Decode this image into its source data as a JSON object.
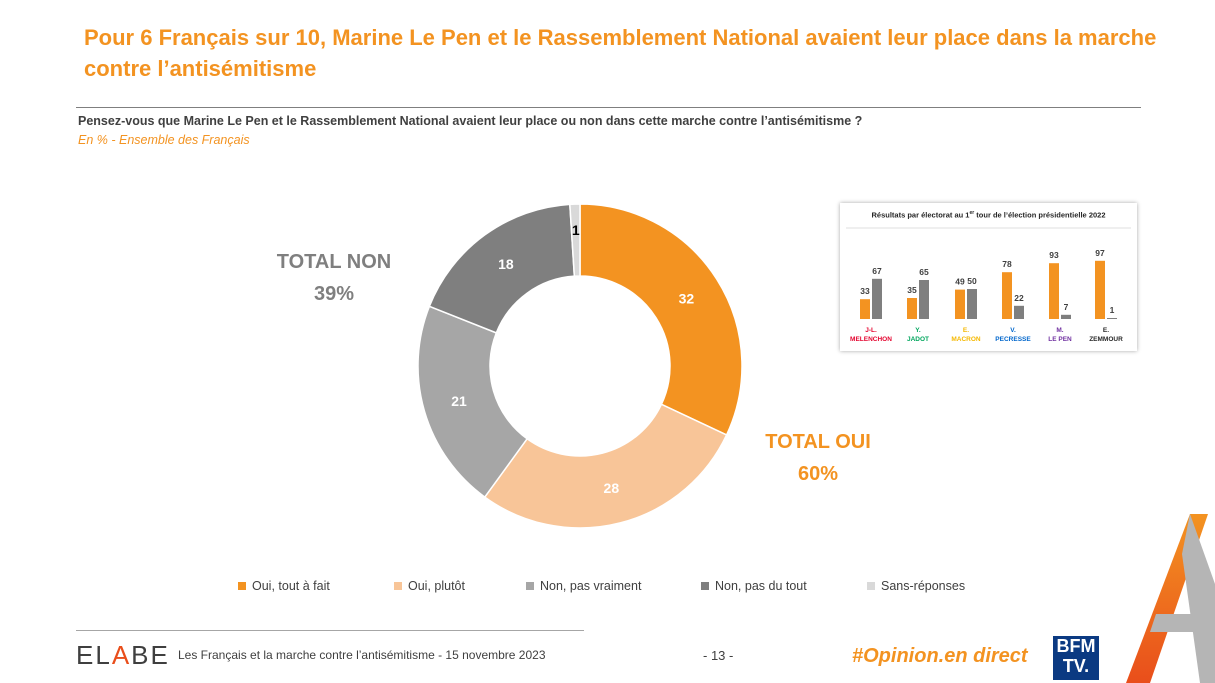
{
  "title": "Pour 6 Français sur 10, Marine Le Pen et le Rassemblement National avaient leur place dans la marche contre l’antisémitisme",
  "question": "Pensez-vous que Marine Le Pen et le Rassemblement National avaient leur place ou non dans cette marche contre l’antisémitisme ?",
  "subtitle": "En % - Ensemble des Français",
  "total_non": {
    "label": "TOTAL NON",
    "value": "39%"
  },
  "total_oui": {
    "label": "TOTAL OUI",
    "value": "60%"
  },
  "colors": {
    "oui_tout_a_fait": "#F39321",
    "oui_plutot": "#F8C598",
    "non_pas_vraiment": "#A6A6A6",
    "non_pas_du_tout": "#7F7F7F",
    "sans_reponse": "#D9D9D9"
  },
  "chart_data": [
    {
      "type": "pie",
      "variant": "donut",
      "title": "Pensez-vous que Marine Le Pen et le Rassemblement National avaient leur place ou non dans cette marche contre l’antisémitisme ?",
      "categories": [
        "Oui, tout à fait",
        "Oui, plutôt",
        "Non, pas vraiment",
        "Non, pas du tout",
        "Sans-réponses"
      ],
      "values": [
        32,
        28,
        21,
        18,
        1
      ],
      "value_labels": [
        "32",
        "28",
        "21",
        "18",
        "1"
      ],
      "legend_position": "bottom"
    },
    {
      "type": "bar",
      "title": "Résultats par électorat au 1er tour de l’élection présidentielle 2022",
      "categories": [
        "J-L. MELENCHON",
        "Y. JADOT",
        "E. MACRON",
        "V. PECRESSE",
        "M. LE PEN",
        "E. ZEMMOUR"
      ],
      "category_lines": [
        [
          "J-L.",
          "MELENCHON"
        ],
        [
          "Y.",
          "JADOT"
        ],
        [
          "E.",
          "MACRON"
        ],
        [
          "V.",
          "PECRESSE"
        ],
        [
          "M.",
          "LE PEN"
        ],
        [
          "E.",
          "ZEMMOUR"
        ]
      ],
      "category_colors": [
        "#E4032E",
        "#00A65D",
        "#F5B800",
        "#0066CC",
        "#7030A0",
        "#262626"
      ],
      "series": [
        {
          "name": "TOTAL OUI",
          "values": [
            33,
            35,
            49,
            78,
            93,
            97
          ],
          "labels": [
            "33",
            "35",
            "49",
            "78",
            "93",
            "97"
          ]
        },
        {
          "name": "TOTAL NON",
          "values": [
            67,
            65,
            50,
            22,
            7,
            1
          ],
          "labels": [
            "67",
            "65",
            "50",
            "22",
            "7",
            "1"
          ]
        }
      ],
      "ylim": [
        0,
        100
      ]
    }
  ],
  "inset_title": {
    "before": "Résultats par électorat au 1",
    "sup": "er",
    "after": " tour de l’élection présidentielle 2022"
  },
  "footer": {
    "brand_e": "EL",
    "brand_a": "A",
    "brand_rest": "BE",
    "text": "Les Français et la marche contre l’antisémitisme - 15 novembre 2023",
    "page": "- 13 -",
    "hashtag": "#Opinion.en direct",
    "bfm_line1": "BFM",
    "bfm_line2": "TV."
  }
}
